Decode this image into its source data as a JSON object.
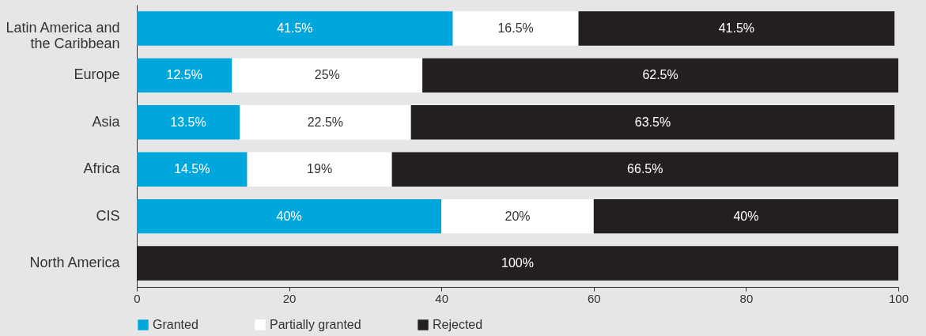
{
  "chart_data": {
    "type": "bar",
    "orientation": "horizontal",
    "stacked": true,
    "categories": [
      "Latin America and\nthe Caribbean",
      "Europe",
      "Asia",
      "Africa",
      "CIS",
      "North America"
    ],
    "series": [
      {
        "name": "Granted",
        "color": "#00a7dc",
        "values": [
          41.5,
          12.5,
          13.5,
          14.5,
          40,
          0
        ],
        "value_labels": [
          "41.5%",
          "12.5%",
          "13.5%",
          "14.5%",
          "40%",
          null
        ]
      },
      {
        "name": "Partially granted",
        "color": "#ffffff",
        "values": [
          16.5,
          25,
          22.5,
          19,
          20,
          0
        ],
        "value_labels": [
          "16.5%",
          "25%",
          "22.5%",
          "19%",
          "20%",
          null
        ]
      },
      {
        "name": "Rejected",
        "color": "#231f20",
        "values": [
          41.5,
          62.5,
          63.5,
          66.5,
          40,
          100
        ],
        "value_labels": [
          "41.5%",
          "62.5%",
          "63.5%",
          "66.5%",
          "40%",
          "100%"
        ]
      }
    ],
    "xlim": [
      0,
      100
    ],
    "xticks": [
      0,
      20,
      40,
      60,
      80,
      100
    ],
    "grid": false,
    "legend": "bottom"
  }
}
